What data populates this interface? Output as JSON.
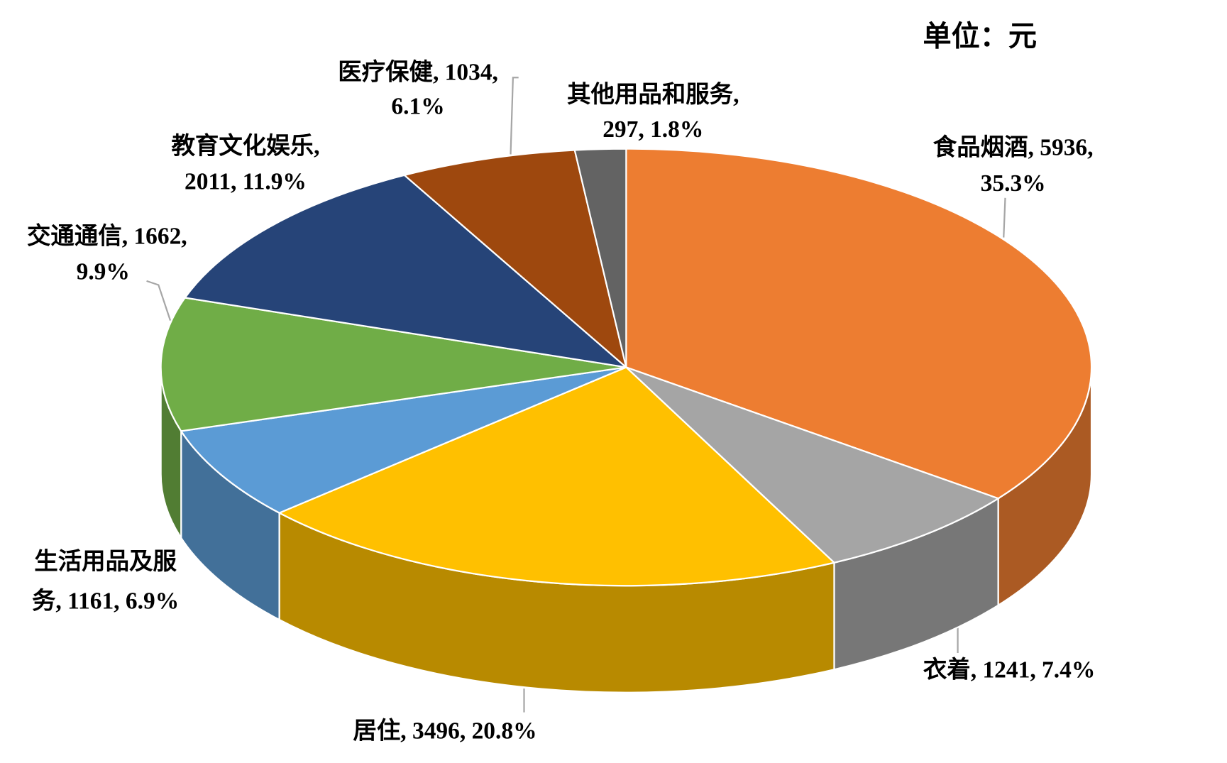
{
  "chart_data": {
    "type": "pie3d",
    "subtitle": "单位：元",
    "values": [
      5936,
      1241,
      3496,
      1161,
      1662,
      2011,
      1034,
      297
    ],
    "value_labels": [
      [
        "食品烟酒, 5936,",
        "35.3%"
      ],
      [
        "衣着, 1241, 7.4%"
      ],
      [
        "居住, 3496, 20.8%"
      ],
      [
        "生活用品及服",
        "务, 1161, 6.9%"
      ],
      [
        "交通通信, 1662,",
        "9.9%"
      ],
      [
        "教育文化娱乐,",
        "2011, 11.9%"
      ],
      [
        "医疗保健, 1034,",
        "6.1%"
      ],
      [
        "其他用品和服务,",
        "297, 1.8%"
      ]
    ],
    "colors": [
      "#ED7D31",
      "#A5A5A5",
      "#FFC000",
      "#5B9BD5",
      "#70AD47",
      "#264478",
      "#9E480E",
      "#636363"
    ]
  }
}
